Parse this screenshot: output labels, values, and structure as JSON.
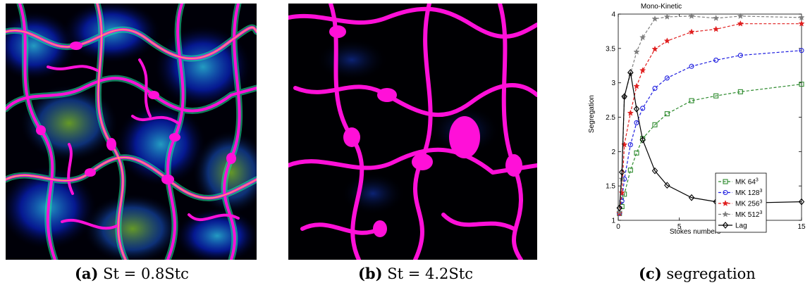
{
  "panels": [
    {
      "id": "a",
      "label": "(a)",
      "caption": "St = 0.8Stc"
    },
    {
      "id": "b",
      "label": "(b)",
      "caption": "St = 4.2Stc"
    },
    {
      "id": "c",
      "label": "(c)",
      "caption": "segregation"
    }
  ],
  "chart_data": {
    "type": "line",
    "title": "Mono-Kinetic",
    "xlabel": "Stokes numbers",
    "ylabel": "Segregation",
    "xlim": [
      0,
      15
    ],
    "ylim": [
      1,
      4
    ],
    "xticks": [
      "0",
      "5",
      "10",
      "15"
    ],
    "yticks": [
      "1",
      "1.5",
      "2",
      "2.5",
      "3",
      "3.5",
      "4"
    ],
    "grid": false,
    "legend_position": "right-middle",
    "series": [
      {
        "name": "MK 64",
        "sup": "3",
        "color": "#2e8b2e",
        "marker": "square",
        "dash": true,
        "x": [
          0.1,
          0.3,
          0.5,
          1,
          1.5,
          2,
          3,
          4,
          6,
          8,
          10,
          15
        ],
        "y": [
          1.1,
          1.2,
          1.38,
          1.73,
          1.98,
          2.19,
          2.39,
          2.55,
          2.74,
          2.81,
          2.87,
          2.98
        ]
      },
      {
        "name": "MK 128",
        "sup": "3",
        "color": "#1f1fe0",
        "marker": "circle",
        "dash": true,
        "x": [
          0.1,
          0.3,
          0.5,
          1,
          1.5,
          2,
          3,
          4,
          6,
          8,
          10,
          15
        ],
        "y": [
          1.1,
          1.28,
          1.6,
          2.1,
          2.42,
          2.63,
          2.92,
          3.07,
          3.24,
          3.33,
          3.4,
          3.47
        ]
      },
      {
        "name": "MK 256",
        "sup": "3",
        "color": "#e01f1f",
        "marker": "star",
        "dash": true,
        "x": [
          0.1,
          0.3,
          0.5,
          1,
          1.5,
          2,
          3,
          4,
          6,
          8,
          10,
          15
        ],
        "y": [
          1.1,
          1.4,
          2.1,
          2.56,
          2.95,
          3.18,
          3.49,
          3.61,
          3.74,
          3.78,
          3.86,
          3.86
        ]
      },
      {
        "name": "MK 512",
        "sup": "3",
        "color": "#7f7f7f",
        "marker": "star",
        "dash": true,
        "x": [
          0.1,
          0.3,
          0.5,
          1,
          1.5,
          2,
          3,
          4,
          6,
          8,
          10,
          15
        ],
        "y": [
          1.12,
          1.6,
          2.8,
          3.13,
          3.45,
          3.66,
          3.93,
          3.96,
          3.97,
          3.94,
          3.97,
          3.95
        ]
      },
      {
        "name": "Lag",
        "sup": "",
        "color": "#000000",
        "marker": "diamond",
        "dash": false,
        "x": [
          0.1,
          0.3,
          0.5,
          1,
          1.5,
          2,
          3,
          4,
          6,
          8,
          10,
          15
        ],
        "y": [
          1.18,
          1.7,
          2.8,
          3.15,
          2.62,
          2.17,
          1.72,
          1.51,
          1.33,
          1.27,
          1.25,
          1.27
        ]
      }
    ]
  }
}
